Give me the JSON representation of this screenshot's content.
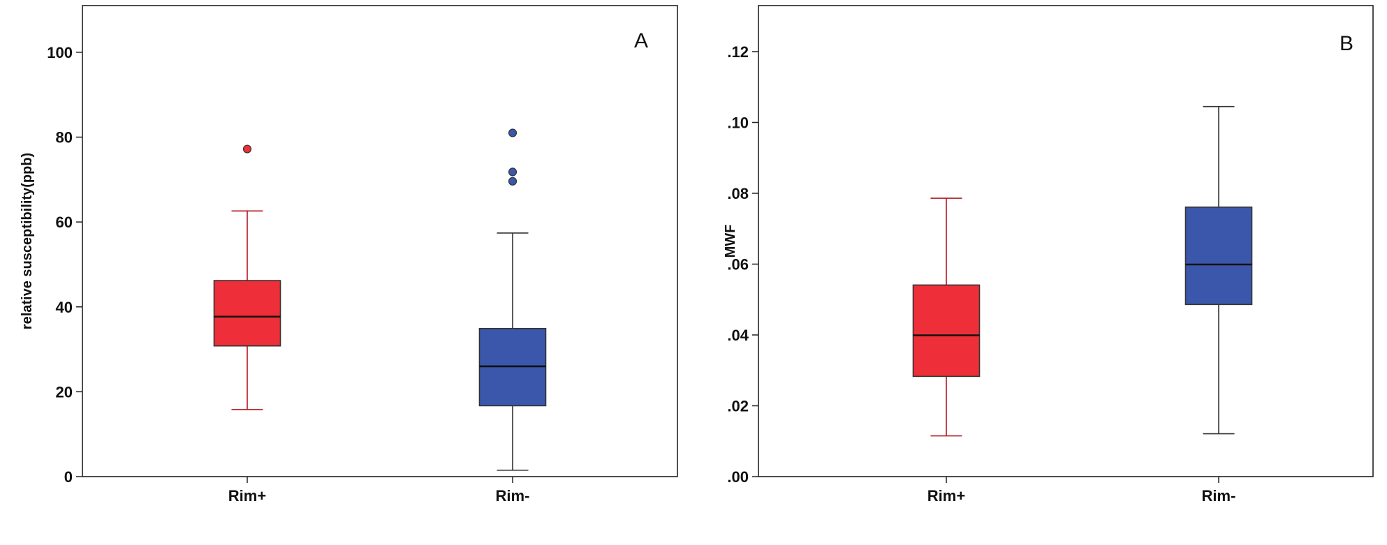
{
  "chart_data": [
    {
      "type": "box",
      "panel_label": "A",
      "ylabel": "relative susceptibility(ppb)",
      "xlabel": "",
      "ylim": [
        0,
        111
      ],
      "yticks": [
        0,
        20,
        40,
        60,
        80,
        100
      ],
      "ytick_labels": [
        "0",
        "20",
        "40",
        "60",
        "80",
        "100"
      ],
      "categories": [
        "Rim+",
        "Rim-"
      ],
      "boxes": [
        {
          "category": "Rim+",
          "color": "#ee2e38",
          "whisker_low": 15.8,
          "q1": 30.8,
          "median": 37.7,
          "q3": 46.2,
          "whisker_high": 62.6,
          "outliers": [
            77.2
          ]
        },
        {
          "category": "Rim-",
          "color": "#3b57ab",
          "whisker_low": 1.5,
          "q1": 16.7,
          "median": 26.0,
          "q3": 34.9,
          "whisker_high": 57.4,
          "outliers": [
            69.6,
            71.8,
            81.0
          ]
        }
      ],
      "grid": false
    },
    {
      "type": "box",
      "panel_label": "B",
      "ylabel": "MWF",
      "xlabel": "",
      "ylim": [
        0,
        0.133
      ],
      "yticks": [
        0,
        0.02,
        0.04,
        0.06,
        0.08,
        0.1,
        0.12
      ],
      "ytick_labels": [
        ".00",
        ".02",
        ".04",
        ".06",
        ".08",
        ".10",
        ".12"
      ],
      "categories": [
        "Rim+",
        "Rim-"
      ],
      "boxes": [
        {
          "category": "Rim+",
          "color": "#ee2e38",
          "whisker_low": 0.0115,
          "q1": 0.0283,
          "median": 0.0399,
          "q3": 0.0541,
          "whisker_high": 0.0786,
          "outliers": []
        },
        {
          "category": "Rim-",
          "color": "#3b57ab",
          "whisker_low": 0.0121,
          "q1": 0.0486,
          "median": 0.0599,
          "q3": 0.0761,
          "whisker_high": 0.1045,
          "outliers": []
        }
      ],
      "grid": false
    }
  ]
}
